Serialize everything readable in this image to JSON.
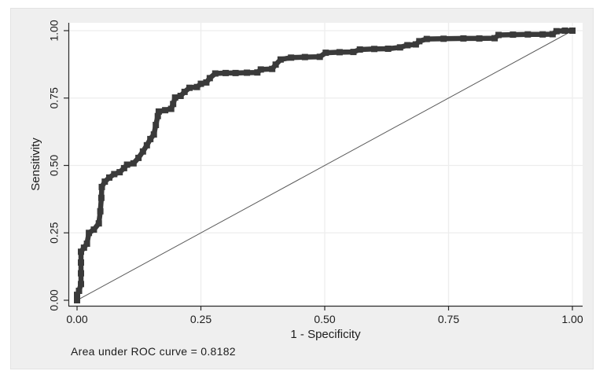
{
  "figure": {
    "background": "#ffffff",
    "panel_background": "#efefef",
    "plot_background": "#ffffff",
    "grid_color": "#ededed",
    "axis_color": "#2a2a2a",
    "text_color": "#1c1c1c"
  },
  "chart_data": {
    "type": "line",
    "title": "",
    "xlabel": "1 - Specificity",
    "ylabel": "Sensitivity",
    "annotation": "Area under ROC curve = 0.8182",
    "auc": 0.8182,
    "xlim": [
      0,
      1
    ],
    "ylim": [
      0,
      1
    ],
    "grid": true,
    "x_tick_values": [
      0,
      0.25,
      0.5,
      0.75,
      1
    ],
    "x_tick_labels": [
      "0.00",
      "0.25",
      "0.50",
      "0.75",
      "1.00"
    ],
    "y_tick_values": [
      0,
      0.25,
      0.5,
      0.75,
      1
    ],
    "y_tick_labels": [
      "0.00",
      "0.25",
      "0.50",
      "0.75",
      "1.00"
    ],
    "reference_line": {
      "name": "chance-diagonal",
      "from": [
        0,
        0
      ],
      "to": [
        1,
        1
      ],
      "color": "#5a5a5a"
    },
    "series": [
      {
        "name": "ROC curve",
        "marker": "square",
        "color": "#3a3a3a",
        "points": [
          [
            0.0,
            0.0
          ],
          [
            0.0,
            0.02
          ],
          [
            0.004,
            0.035
          ],
          [
            0.008,
            0.06
          ],
          [
            0.008,
            0.1
          ],
          [
            0.008,
            0.14
          ],
          [
            0.008,
            0.18
          ],
          [
            0.014,
            0.195
          ],
          [
            0.02,
            0.21
          ],
          [
            0.024,
            0.25
          ],
          [
            0.034,
            0.262
          ],
          [
            0.044,
            0.285
          ],
          [
            0.047,
            0.33
          ],
          [
            0.049,
            0.38
          ],
          [
            0.05,
            0.42
          ],
          [
            0.056,
            0.44
          ],
          [
            0.065,
            0.455
          ],
          [
            0.075,
            0.468
          ],
          [
            0.086,
            0.475
          ],
          [
            0.095,
            0.49
          ],
          [
            0.101,
            0.503
          ],
          [
            0.114,
            0.508
          ],
          [
            0.124,
            0.528
          ],
          [
            0.133,
            0.552
          ],
          [
            0.141,
            0.575
          ],
          [
            0.148,
            0.598
          ],
          [
            0.155,
            0.615
          ],
          [
            0.159,
            0.65
          ],
          [
            0.163,
            0.683
          ],
          [
            0.165,
            0.7
          ],
          [
            0.178,
            0.705
          ],
          [
            0.19,
            0.71
          ],
          [
            0.194,
            0.728
          ],
          [
            0.198,
            0.752
          ],
          [
            0.209,
            0.758
          ],
          [
            0.217,
            0.773
          ],
          [
            0.227,
            0.788
          ],
          [
            0.242,
            0.791
          ],
          [
            0.25,
            0.803
          ],
          [
            0.261,
            0.808
          ],
          [
            0.268,
            0.824
          ],
          [
            0.279,
            0.841
          ],
          [
            0.3,
            0.843
          ],
          [
            0.32,
            0.843
          ],
          [
            0.343,
            0.844
          ],
          [
            0.364,
            0.845
          ],
          [
            0.371,
            0.856
          ],
          [
            0.394,
            0.858
          ],
          [
            0.401,
            0.874
          ],
          [
            0.411,
            0.893
          ],
          [
            0.432,
            0.9
          ],
          [
            0.46,
            0.902
          ],
          [
            0.49,
            0.903
          ],
          [
            0.502,
            0.918
          ],
          [
            0.53,
            0.92
          ],
          [
            0.558,
            0.921
          ],
          [
            0.571,
            0.93
          ],
          [
            0.6,
            0.932
          ],
          [
            0.628,
            0.933
          ],
          [
            0.652,
            0.938
          ],
          [
            0.667,
            0.946
          ],
          [
            0.684,
            0.949
          ],
          [
            0.691,
            0.961
          ],
          [
            0.706,
            0.969
          ],
          [
            0.74,
            0.97
          ],
          [
            0.78,
            0.971
          ],
          [
            0.812,
            0.971
          ],
          [
            0.843,
            0.972
          ],
          [
            0.851,
            0.984
          ],
          [
            0.88,
            0.985
          ],
          [
            0.91,
            0.986
          ],
          [
            0.94,
            0.986
          ],
          [
            0.96,
            0.987
          ],
          [
            0.968,
            0.998
          ],
          [
            0.985,
            1.0
          ],
          [
            1.0,
            1.0
          ]
        ]
      }
    ]
  }
}
